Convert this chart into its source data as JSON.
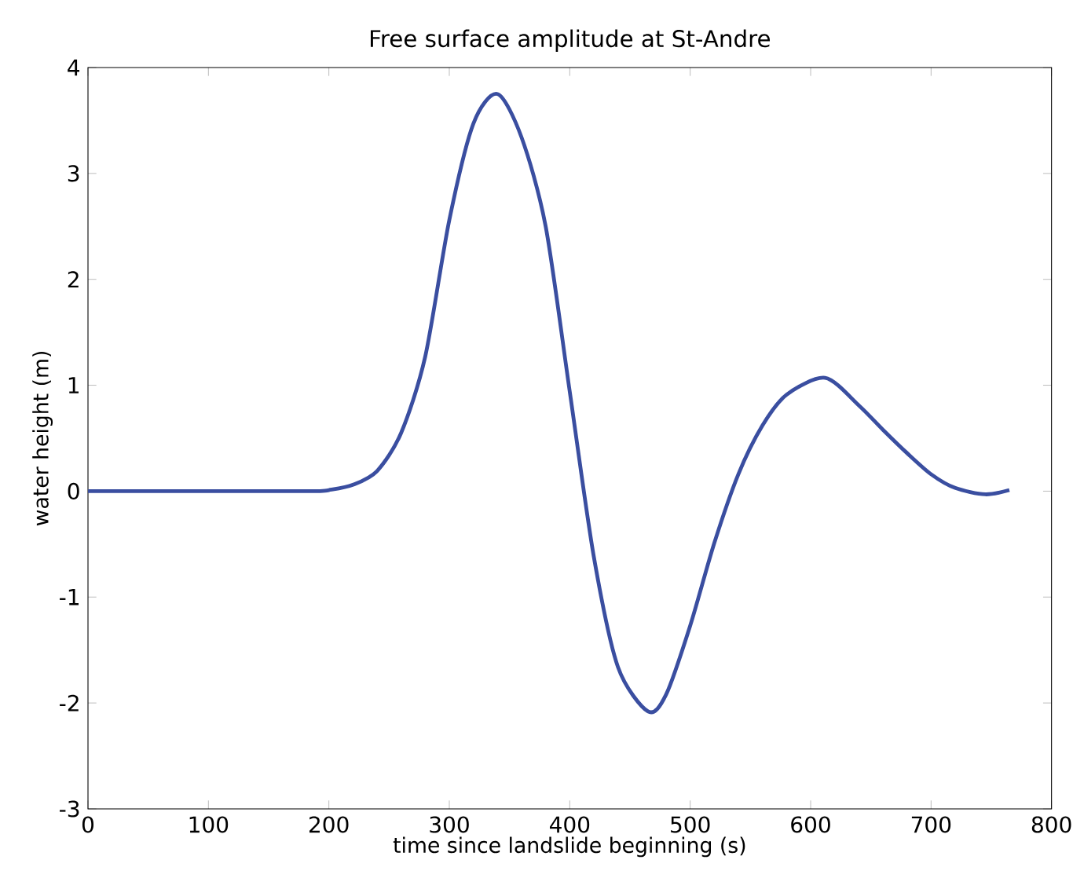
{
  "chart_data": {
    "type": "line",
    "title": "Free surface amplitude at St-Andre",
    "xlabel": "time since landslide beginning (s)",
    "ylabel": "water height (m)",
    "series": [
      {
        "color": "#3a4ea0",
        "x": [
          0,
          50,
          100,
          150,
          190,
          200,
          220,
          240,
          260,
          280,
          300,
          320,
          340,
          360,
          380,
          400,
          420,
          440,
          465,
          480,
          500,
          520,
          540,
          560,
          580,
          612,
          640,
          660,
          680,
          700,
          720,
          745,
          765
        ],
        "values": [
          0,
          0,
          0,
          0,
          0,
          0.01,
          0.06,
          0.19,
          0.55,
          1.27,
          2.56,
          3.47,
          3.75,
          3.34,
          2.5,
          0.94,
          -0.62,
          -1.66,
          -2.08,
          -1.92,
          -1.27,
          -0.49,
          0.16,
          0.62,
          0.91,
          1.07,
          0.81,
          0.58,
          0.36,
          0.16,
          0.03,
          -0.03,
          0.01
        ]
      }
    ],
    "xlim": [
      0,
      800
    ],
    "ylim": [
      -3,
      4
    ],
    "xticks": [
      0,
      100,
      200,
      300,
      400,
      500,
      600,
      700,
      800
    ],
    "yticks": [
      -3,
      -2,
      -1,
      0,
      1,
      2,
      3,
      4
    ],
    "grid": false,
    "line_style": "solid",
    "marker": "none"
  }
}
